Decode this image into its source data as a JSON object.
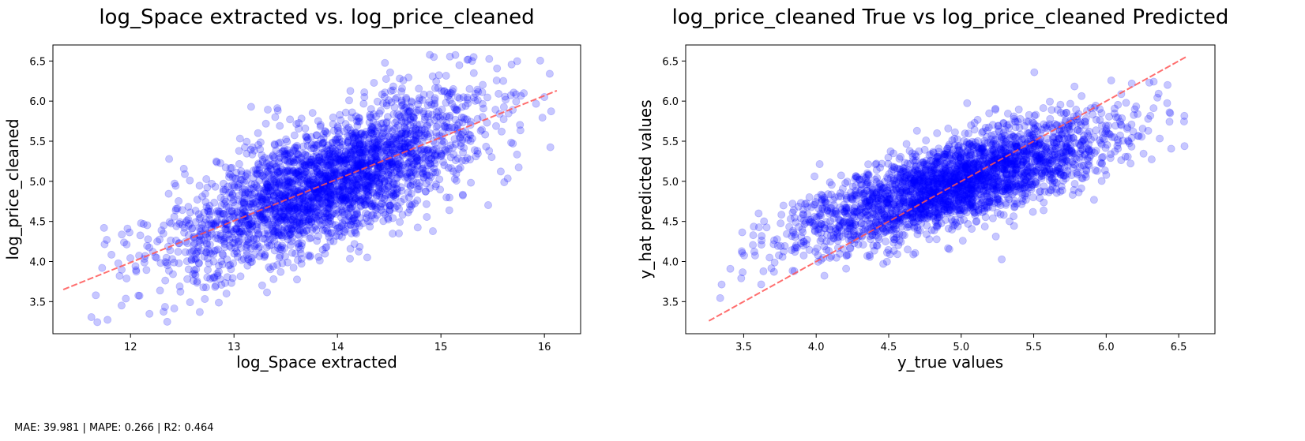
{
  "chart_data": [
    {
      "type": "scatter",
      "title": "log_Space extracted vs. log_price_cleaned",
      "xlabel": "log_Space extracted",
      "ylabel": "log_price_cleaned",
      "xlim": [
        11.25,
        16.35
      ],
      "ylim": [
        3.1,
        6.7
      ],
      "xticks": [
        12,
        13,
        14,
        15,
        16
      ],
      "yticks": [
        3.5,
        4.0,
        4.5,
        5.0,
        5.5,
        6.0,
        6.5
      ],
      "xtick_labels": [
        "12",
        "13",
        "14",
        "15",
        "16"
      ],
      "ytick_labels": [
        "3.5",
        "4.0",
        "4.5",
        "5.0",
        "5.5",
        "6.0",
        "6.5"
      ],
      "point_color": "#0000ff",
      "point_alpha": 0.22,
      "fit_line": {
        "x": [
          11.35,
          16.12
        ],
        "y": [
          3.65,
          6.13
        ],
        "color": "#ff5555",
        "style": "dashed"
      },
      "distribution": {
        "n_points": 2800,
        "x_center": 13.9,
        "x_spread": 0.75,
        "x_min": 11.35,
        "x_max": 16.12,
        "y_intercept": -2.27,
        "y_slope": 0.522,
        "y_noise": 0.38
      }
    },
    {
      "type": "scatter",
      "title": "log_price_cleaned True vs log_price_cleaned Predicted",
      "xlabel": "y_true values",
      "ylabel": "y_hat predicted values",
      "xlim": [
        3.1,
        6.75
      ],
      "ylim": [
        3.1,
        6.7
      ],
      "xticks": [
        3.5,
        4.0,
        4.5,
        5.0,
        5.5,
        6.0,
        6.5
      ],
      "yticks": [
        3.5,
        4.0,
        4.5,
        5.0,
        5.5,
        6.0,
        6.5
      ],
      "xtick_labels": [
        "3.5",
        "4.0",
        "4.5",
        "5.0",
        "5.5",
        "6.0",
        "6.5"
      ],
      "ytick_labels": [
        "3.5",
        "4.0",
        "4.5",
        "5.0",
        "5.5",
        "6.0",
        "6.5"
      ],
      "point_color": "#0000ff",
      "point_alpha": 0.22,
      "fit_line": {
        "x": [
          3.26,
          6.55
        ],
        "y": [
          3.26,
          6.55
        ],
        "color": "#ff5555",
        "style": "dashed"
      },
      "distribution": {
        "n_points": 2800,
        "x_center": 4.95,
        "x_spread": 0.55,
        "x_min": 3.26,
        "x_max": 6.55,
        "y_intercept": 2.25,
        "y_slope": 0.55,
        "y_noise": 0.27
      }
    }
  ],
  "footer": {
    "metrics": "MAE: 39.981 | MAPE: 0.266 | R2: 0.464"
  }
}
